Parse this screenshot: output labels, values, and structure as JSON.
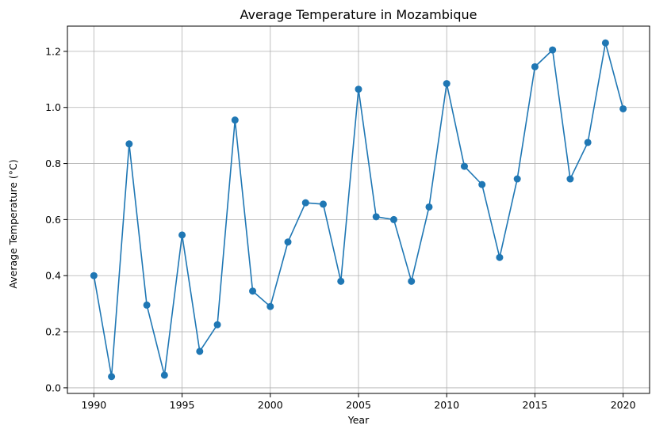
{
  "chart_data": {
    "type": "line",
    "title": "Average Temperature in Mozambique",
    "xlabel": "Year",
    "ylabel": "Average Temperature (°C)",
    "x": [
      1990,
      1991,
      1992,
      1993,
      1994,
      1995,
      1996,
      1997,
      1998,
      1999,
      2000,
      2001,
      2002,
      2003,
      2004,
      2005,
      2006,
      2007,
      2008,
      2009,
      2010,
      2011,
      2012,
      2013,
      2014,
      2015,
      2016,
      2017,
      2018,
      2019,
      2020
    ],
    "series": [
      {
        "values": [
          0.4,
          0.04,
          0.87,
          0.295,
          0.045,
          0.545,
          0.13,
          0.225,
          0.955,
          0.345,
          0.29,
          0.52,
          0.66,
          0.655,
          0.38,
          1.065,
          0.61,
          0.6,
          0.38,
          0.645,
          1.085,
          0.79,
          0.725,
          0.465,
          0.745,
          1.145,
          1.205,
          0.745,
          0.875,
          1.23,
          0.995
        ],
        "color": "#1f77b4",
        "marker": "circle"
      }
    ],
    "xlim": [
      1988.5,
      2021.5
    ],
    "ylim": [
      -0.02,
      1.29
    ],
    "xticks": [
      1990,
      1995,
      2000,
      2005,
      2010,
      2015,
      2020
    ],
    "yticks": [
      0.0,
      0.2,
      0.4,
      0.6,
      0.8,
      1.0,
      1.2
    ],
    "xtick_labels": [
      "1990",
      "1995",
      "2000",
      "2005",
      "2010",
      "2015",
      "2020"
    ],
    "ytick_labels": [
      "0.0",
      "0.2",
      "0.4",
      "0.6",
      "0.8",
      "1.0",
      "1.2"
    ],
    "grid": true
  }
}
